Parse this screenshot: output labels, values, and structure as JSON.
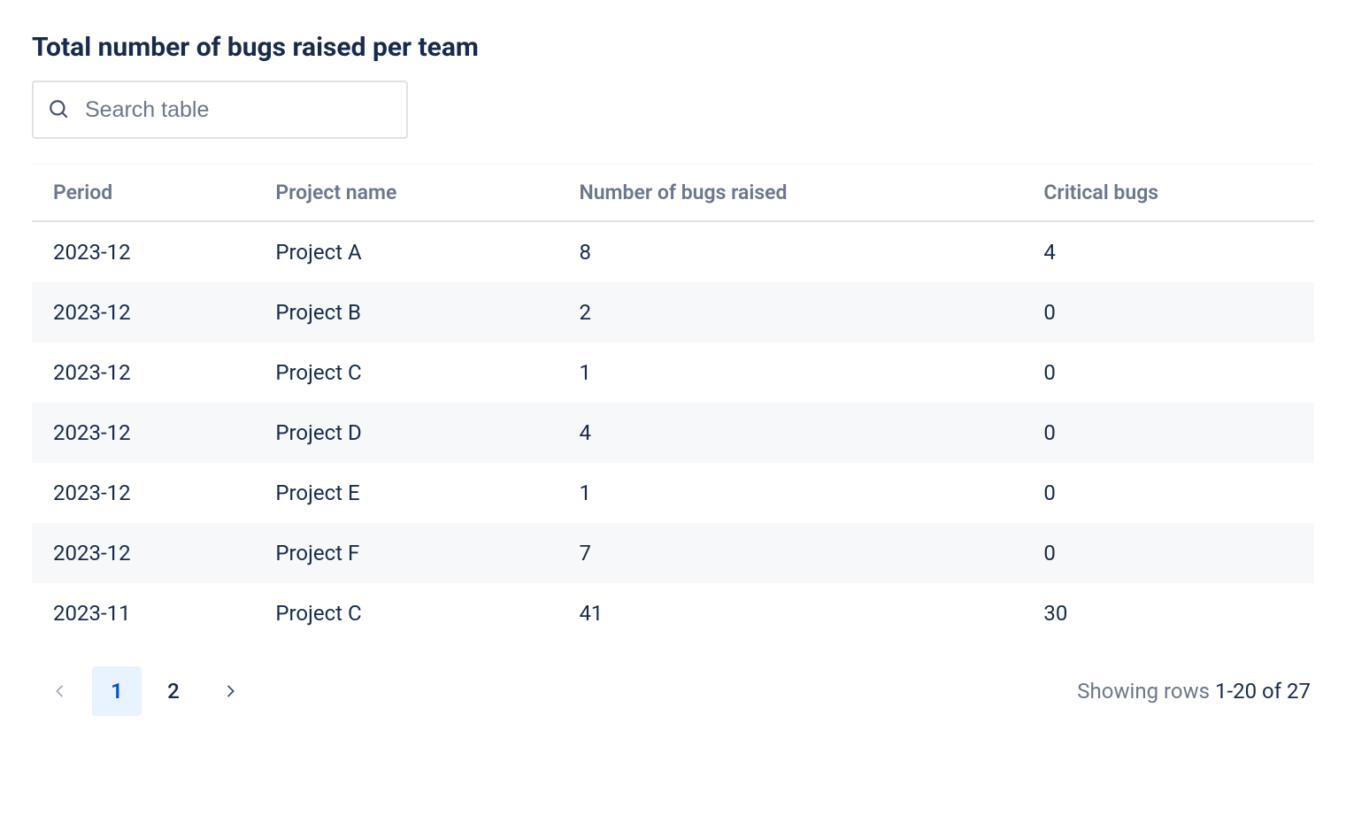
{
  "title": "Total number of bugs raised per team",
  "search": {
    "placeholder": "Search table",
    "value": ""
  },
  "table": {
    "columns": [
      "Period",
      "Project name",
      "Number of bugs raised",
      "Critical bugs"
    ],
    "rows": [
      [
        "2023-12",
        "Project A",
        "8",
        "4"
      ],
      [
        "2023-12",
        "Project B",
        "2",
        "0"
      ],
      [
        "2023-12",
        "Project C",
        "1",
        "0"
      ],
      [
        "2023-12",
        "Project D",
        "4",
        "0"
      ],
      [
        "2023-12",
        "Project E",
        "1",
        "0"
      ],
      [
        "2023-12",
        "Project F",
        "7",
        "0"
      ],
      [
        "2023-11",
        "Project C",
        "41",
        "30"
      ]
    ]
  },
  "pagination": {
    "pages": [
      "1",
      "2"
    ],
    "current": "1",
    "prev_disabled": true,
    "next_disabled": false,
    "summary_prefix": "Showing rows ",
    "summary_range": "1-20",
    "summary_of": " of ",
    "summary_total": "27"
  },
  "colors": {
    "text_primary": "#172B4D",
    "text_secondary": "#6B778C",
    "row_stripe": "#F7F8F9",
    "border": "#DFE1E6",
    "accent_bg": "#E9F2FF",
    "accent_fg": "#0052CC",
    "background": "#ffffff"
  }
}
